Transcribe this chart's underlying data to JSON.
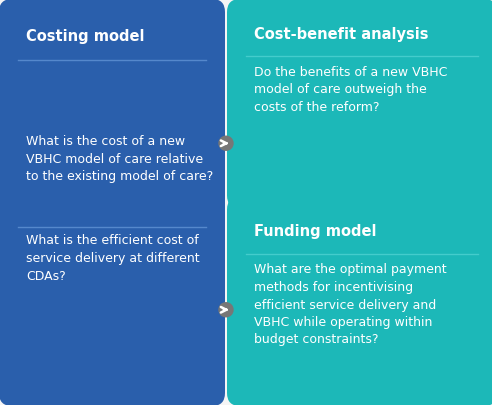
{
  "bg_color": "#f5f5f5",
  "left_box_color": "#2a5fac",
  "right_box_color": "#1cb8b8",
  "sep_line_color_left": "#5588cc",
  "sep_line_color_right": "#44cccc",
  "arrow_color": "#777777",
  "title_color": "#ffffff",
  "body_color": "#ffffff",
  "left_title": "Costing model",
  "left_body_top": "What is the cost of a new\nVBHC model of care relative\nto the existing model of care?",
  "left_body_bottom": "What is the efficient cost of\nservice delivery at different\nCDAs?",
  "right_title_top": "Cost-benefit analysis",
  "right_body_top": "Do the benefits of a new VBHC\nmodel of care outweigh the\ncosts of the reform?",
  "right_title_bottom": "Funding model",
  "right_body_bottom": "What are the optimal payment\nmethods for incentivising\nefficient service delivery and\nVBHC while operating within\nbudget constraints?",
  "title_fontsize": 10.5,
  "body_fontsize": 9.0
}
